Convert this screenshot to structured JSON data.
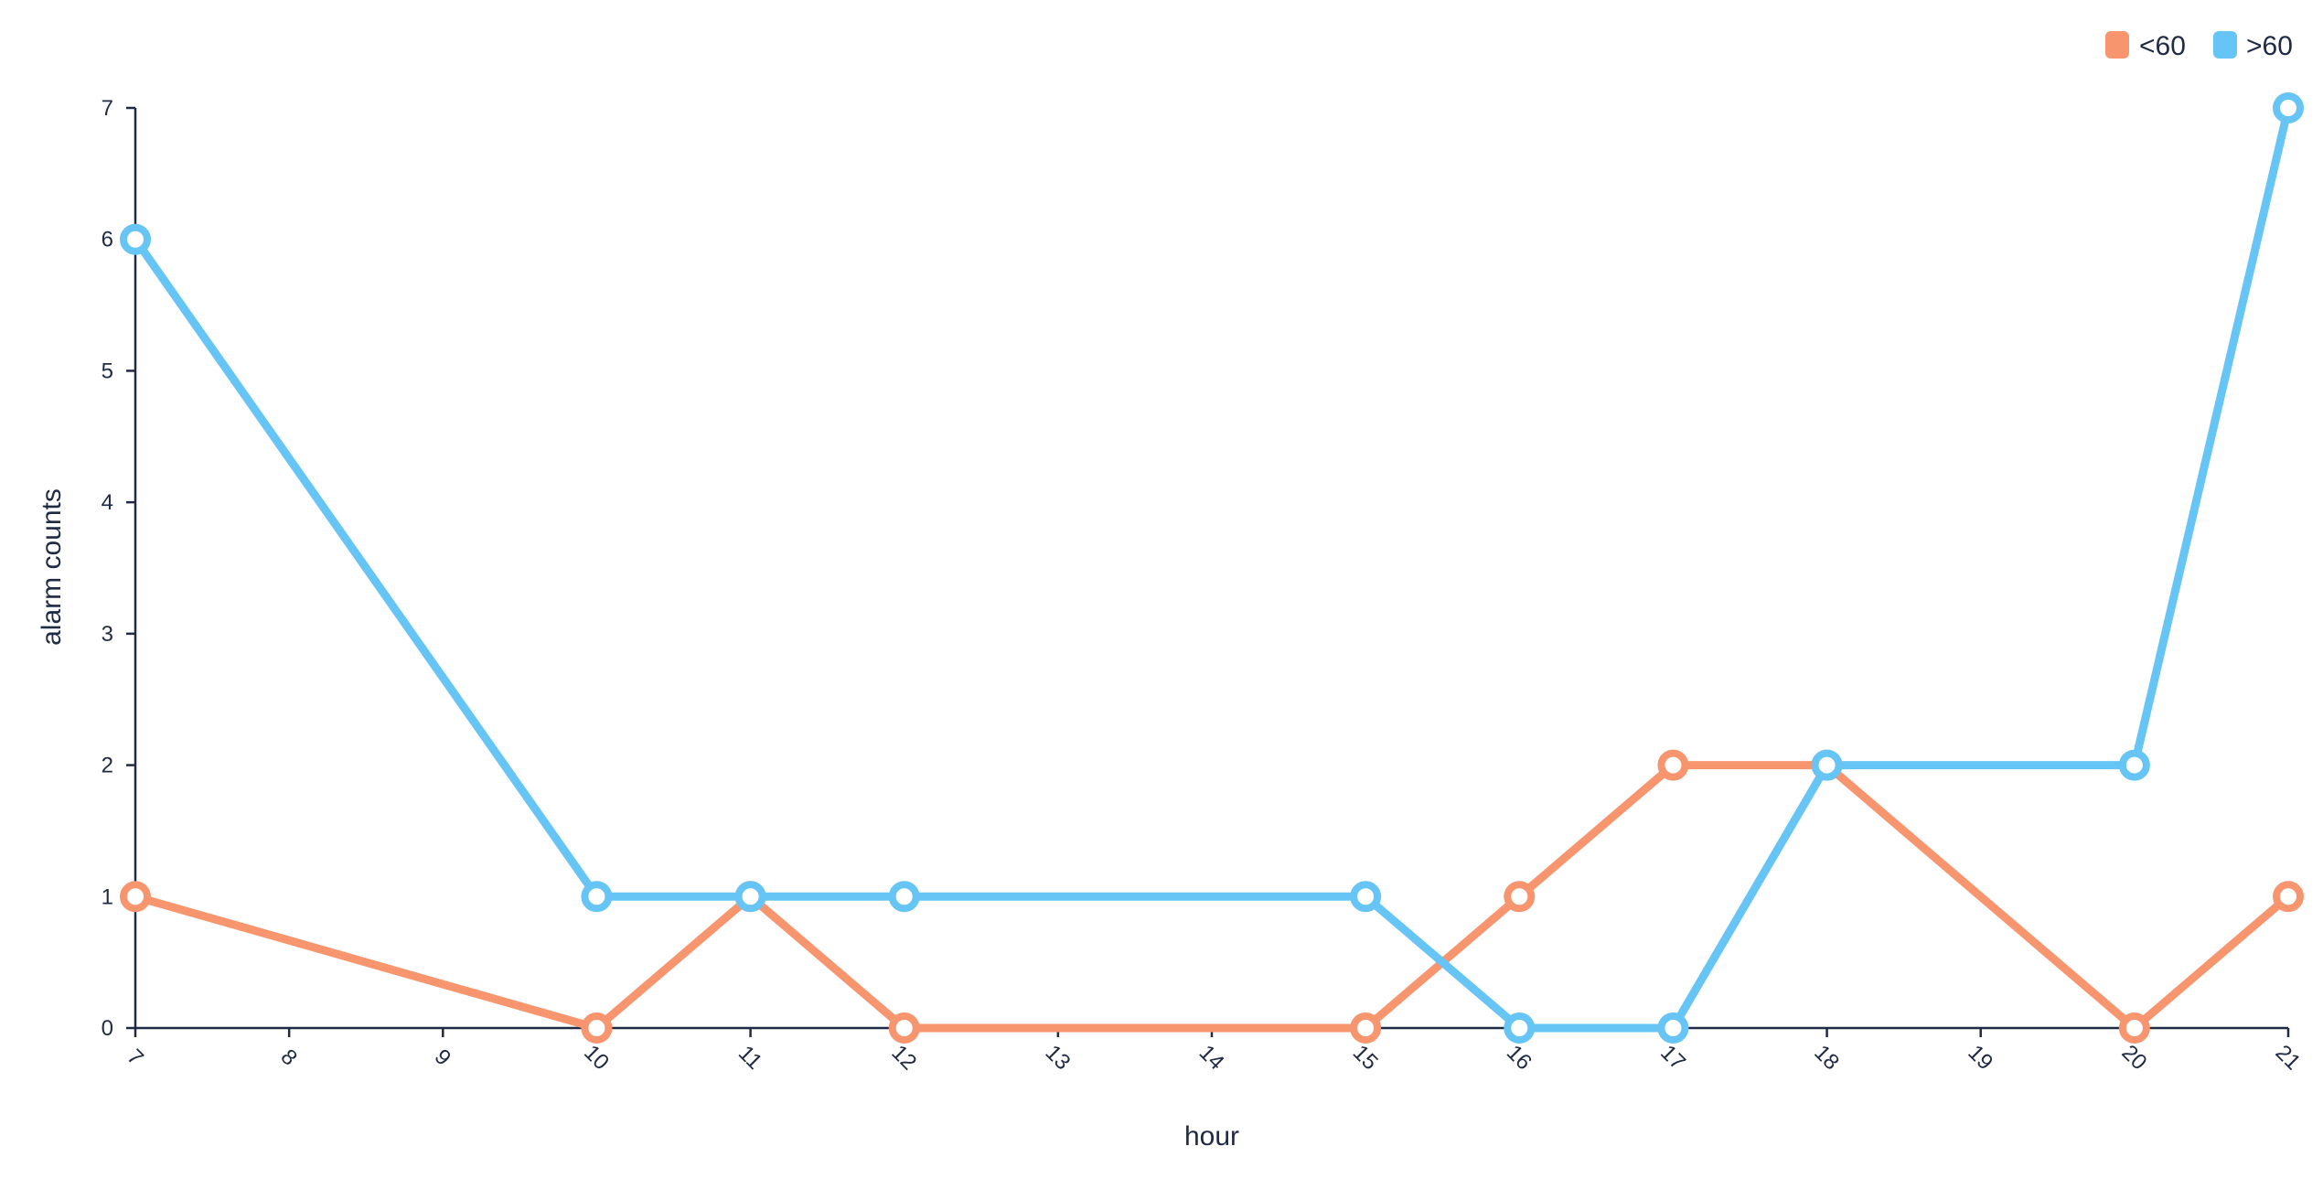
{
  "chart_data": {
    "type": "line",
    "title": "",
    "xlabel": "hour",
    "ylabel": "alarm counts",
    "x_ticks": [
      "7",
      "8",
      "9",
      "10",
      "11",
      "12",
      "13",
      "14",
      "15",
      "16",
      "17",
      "18",
      "19",
      "20",
      "21"
    ],
    "y_ticks": [
      "0",
      "1",
      "2",
      "3",
      "4",
      "5",
      "6",
      "7"
    ],
    "xlim": [
      7,
      21
    ],
    "ylim": [
      0,
      7
    ],
    "legend_position": "top-right",
    "series": [
      {
        "name": "<60",
        "color": "#f7956f",
        "points": [
          {
            "x": 7,
            "y": 1
          },
          {
            "x": 10,
            "y": 0
          },
          {
            "x": 11,
            "y": 1
          },
          {
            "x": 12,
            "y": 0
          },
          {
            "x": 15,
            "y": 0
          },
          {
            "x": 16,
            "y": 1
          },
          {
            "x": 17,
            "y": 2
          },
          {
            "x": 18,
            "y": 2
          },
          {
            "x": 20,
            "y": 0
          },
          {
            "x": 21,
            "y": 1
          }
        ]
      },
      {
        "name": ">60",
        "color": "#66c5f5",
        "points": [
          {
            "x": 7,
            "y": 6
          },
          {
            "x": 10,
            "y": 1
          },
          {
            "x": 11,
            "y": 1
          },
          {
            "x": 12,
            "y": 1
          },
          {
            "x": 15,
            "y": 1
          },
          {
            "x": 16,
            "y": 0
          },
          {
            "x": 17,
            "y": 0
          },
          {
            "x": 18,
            "y": 2
          },
          {
            "x": 20,
            "y": 2
          },
          {
            "x": 21,
            "y": 7
          }
        ]
      }
    ]
  }
}
